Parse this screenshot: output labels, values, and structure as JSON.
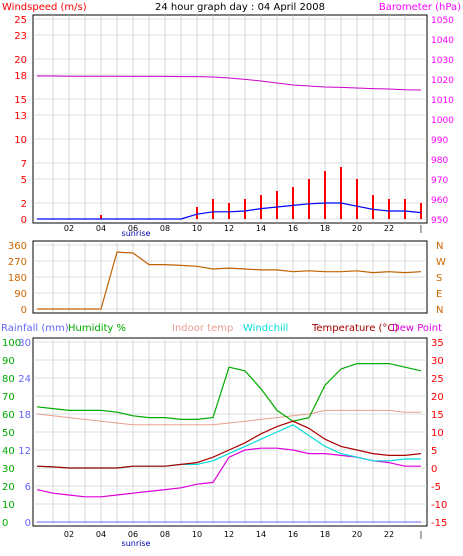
{
  "colors": {
    "background": "#ffffff",
    "plot_background": "#ffffff",
    "grid": "#c0c0c0",
    "frame": "#000000",
    "windspeed_axis": "#ff0000",
    "barometer_axis": "#ff00ff",
    "wind_gust": "#ff0000",
    "wind_avg": "#0000ff",
    "barometer_line": "#cc00cc",
    "direction_line": "#c06000",
    "direction_labels": "#cc6600",
    "rainfall": "#6666ff",
    "humidity": "#00aa00",
    "indoor_temp": "#e8a090",
    "windchill": "#00dddd",
    "temperature": "#aa0000",
    "dew_point": "#dd00dd",
    "sunrise": "#0000aa",
    "temp_axis": "#ff0000"
  },
  "chart_data": [
    {
      "type": "line",
      "title": "24 hour graph day : 04 April 2008",
      "ylabel": "Windspeed (m/s)",
      "y2label": "Barometer (hPa)",
      "grid": true,
      "x_ticks": [
        "02",
        "04",
        "06",
        "08",
        "10",
        "12",
        "14",
        "16",
        "18",
        "20",
        "22",
        "|"
      ],
      "annotation": "sunrise",
      "ylim": [
        0,
        25
      ],
      "y_ticks": [
        0,
        2,
        5,
        7,
        10,
        13,
        15,
        18,
        20,
        23,
        25
      ],
      "y2lim": [
        950,
        1050
      ],
      "y2_ticks": [
        950,
        960,
        970,
        980,
        990,
        1000,
        1010,
        1020,
        1030,
        1040,
        1050
      ],
      "x_hours": [
        0,
        1,
        2,
        3,
        4,
        5,
        6,
        7,
        8,
        9,
        10,
        11,
        12,
        13,
        14,
        15,
        16,
        17,
        18,
        19,
        20,
        21,
        22,
        23,
        24
      ],
      "barometer": [
        1021.5,
        1021.5,
        1021.4,
        1021.4,
        1021.4,
        1021.4,
        1021.3,
        1021.3,
        1021.3,
        1021.2,
        1021.2,
        1021,
        1020.5,
        1019.8,
        1019,
        1018,
        1017,
        1016.5,
        1016,
        1015.8,
        1015.5,
        1015.2,
        1015,
        1014.6,
        1014.5
      ],
      "wind_gust": [
        0,
        0,
        0,
        0,
        0.5,
        0,
        0,
        0,
        0,
        0,
        1.5,
        2.5,
        2,
        2.5,
        3,
        3.5,
        4,
        5,
        6,
        6.5,
        5,
        3,
        2.5,
        2.5,
        2
      ],
      "wind_avg": [
        0,
        0,
        0,
        0,
        0,
        0,
        0,
        0,
        0,
        0,
        0.6,
        0.9,
        0.9,
        1,
        1.3,
        1.5,
        1.7,
        1.9,
        2,
        2,
        1.6,
        1.2,
        1,
        1,
        0.8
      ]
    },
    {
      "type": "line",
      "ylabel": "",
      "grid": true,
      "y_ticks": [
        0,
        90,
        180,
        270,
        360
      ],
      "direction_labels": [
        "N",
        "W",
        "S",
        "E",
        "N"
      ],
      "ylim": [
        0,
        360
      ],
      "x_hours": [
        0,
        1,
        2,
        3,
        4,
        5,
        6,
        7,
        8,
        9,
        10,
        11,
        12,
        13,
        14,
        15,
        16,
        17,
        18,
        19,
        20,
        21,
        22,
        23,
        24
      ],
      "direction": [
        0,
        0,
        0,
        0,
        0,
        320,
        315,
        250,
        250,
        245,
        240,
        225,
        230,
        225,
        220,
        220,
        210,
        215,
        210,
        210,
        215,
        205,
        210,
        205,
        210
      ]
    },
    {
      "type": "line",
      "grid": true,
      "legend": [
        "Rainfall (mm)",
        "Humidity %",
        "Indoor temp",
        "Windchill",
        "Temperature (°C)",
        "Dew Point"
      ],
      "rain_ticks": [
        0,
        6,
        12,
        18,
        24,
        30
      ],
      "humidity_ticks": [
        0,
        10,
        20,
        30,
        40,
        50,
        60,
        70,
        80,
        90,
        100
      ],
      "temp_ticks": [
        -15,
        -10,
        -5,
        0,
        5,
        10,
        15,
        20,
        25,
        30,
        35
      ],
      "ylim_humidity": [
        0,
        100
      ],
      "ylim_temp": [
        -15,
        35
      ],
      "x_hours": [
        0,
        1,
        2,
        3,
        4,
        5,
        6,
        7,
        8,
        9,
        10,
        11,
        12,
        13,
        14,
        15,
        16,
        17,
        18,
        19,
        20,
        21,
        22,
        23,
        24
      ],
      "humidity": [
        64,
        63,
        62,
        62,
        62,
        61,
        59,
        58,
        58,
        57,
        57,
        58,
        86,
        84,
        74,
        62,
        56,
        58,
        76,
        85,
        88,
        88,
        88,
        86,
        84
      ],
      "indoor_temp": [
        15,
        14.5,
        14,
        13.5,
        13,
        12.5,
        12,
        12,
        12,
        12,
        12,
        12,
        12.5,
        13,
        13.5,
        14,
        14.5,
        15,
        16,
        16,
        16,
        16,
        16,
        15.5,
        15.5
      ],
      "temperature": [
        0.5,
        0.3,
        0,
        0,
        0,
        0,
        0.5,
        0.5,
        0.5,
        1,
        1.5,
        3,
        5,
        7,
        9.5,
        11.5,
        13,
        11,
        8,
        6,
        5,
        4,
        3.5,
        3.5,
        4
      ],
      "windchill": [
        0.5,
        0.3,
        0,
        0,
        0,
        0,
        0.5,
        0.5,
        0.5,
        1,
        1,
        2,
        4,
        6,
        8,
        10,
        12,
        9,
        6,
        4,
        3,
        2,
        2,
        2.5,
        2.5
      ],
      "dew_point": [
        -6,
        -7,
        -7.5,
        -8,
        -8,
        -7.5,
        -7,
        -6.5,
        -6,
        -5.5,
        -4.5,
        -4,
        3,
        5,
        5.5,
        5.5,
        5,
        4,
        4,
        3.5,
        3,
        2,
        1.5,
        0.5,
        0.5
      ],
      "rainfall": [
        0,
        0,
        0,
        0,
        0,
        0,
        0,
        0,
        0,
        0,
        0,
        0,
        0,
        0,
        0,
        0,
        0,
        0,
        0,
        0,
        0,
        0,
        0,
        0,
        0
      ]
    }
  ]
}
